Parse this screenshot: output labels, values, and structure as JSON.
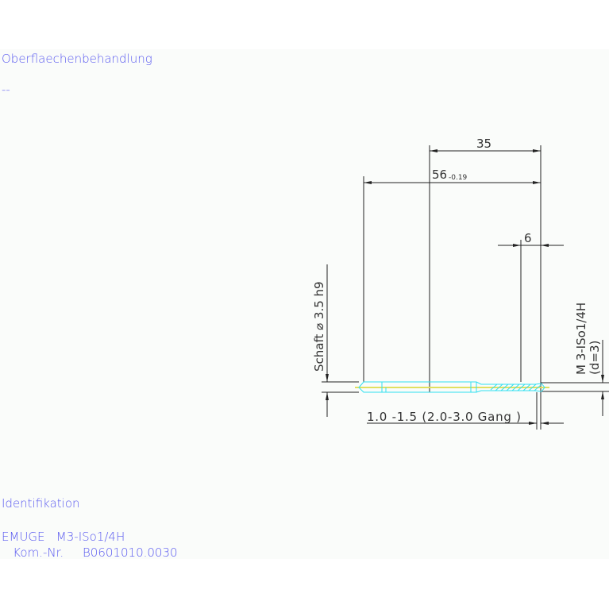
{
  "surface": {
    "label": "Oberflaechenbehandlung",
    "value": "--"
  },
  "identification": {
    "label": "Identifikation",
    "line1": "EMUGE   M3-ISo1/4H",
    "line2": "   Kom.-Nr.     B0601010.0030"
  },
  "dimensions": {
    "thread_length": "35",
    "total_length": "56",
    "total_length_tolerance": "-0.19",
    "chamfer": "6",
    "shank": "Schaft  ⌀ 3.5  h9",
    "thread_spec": "M 3-ISo1/4H",
    "thread_diameter": "(d=3)",
    "chamfer_threads": "1.0 -1.5 (2.0-3.0 Gang  )"
  },
  "colors": {
    "text": "#5a5af0",
    "tool_outline": "#30e0f0",
    "centerline": "#e0e060",
    "dimension": "#222222"
  }
}
